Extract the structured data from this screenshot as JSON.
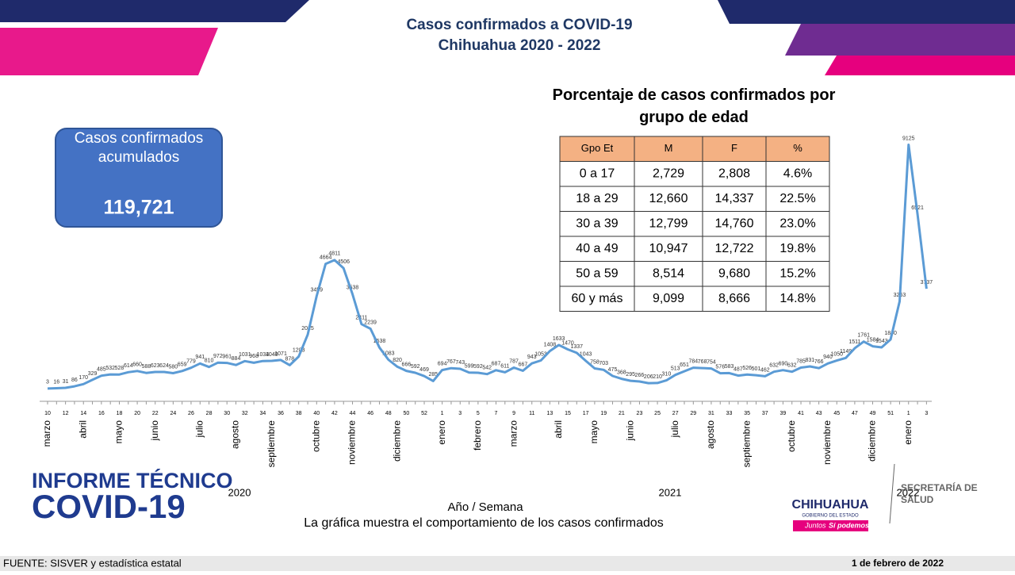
{
  "header": {
    "title": "Casos confirmados a COVID-19",
    "subtitle": "Chihuahua 2020 - 2022"
  },
  "summary": {
    "label": "Casos confirmados acumulados",
    "value": "119,721"
  },
  "table": {
    "title": "Porcentaje de casos confirmados por grupo de edad",
    "columns": [
      "Gpo Et",
      "M",
      "F",
      "%"
    ],
    "rows": [
      [
        "0 a 17",
        "2,729",
        "2,808",
        "4.6%"
      ],
      [
        "18 a 29",
        "12,660",
        "14,337",
        "22.5%"
      ],
      [
        "30 a 39",
        "12,799",
        "14,760",
        "23.0%"
      ],
      [
        "40 a 49",
        "10,947",
        "12,722",
        "19.8%"
      ],
      [
        "50 a 59",
        "8,514",
        "9,680",
        "15.2%"
      ],
      [
        "60 y más",
        "9,099",
        "8,666",
        "14.8%"
      ]
    ]
  },
  "chart_data": {
    "type": "line",
    "color": "#5b9bd5",
    "ylim": [
      0,
      10000
    ],
    "x_label": "Año / Semana",
    "caption": "La gráfica muestra el comportamiento de los casos confirmados",
    "categories": [
      "10",
      null,
      "12",
      null,
      "14",
      null,
      "16",
      null,
      "18",
      null,
      "20",
      null,
      "22",
      null,
      "24",
      null,
      "26",
      null,
      "28",
      null,
      "30",
      null,
      "32",
      null,
      "34",
      null,
      "36",
      null,
      "38",
      null,
      "40",
      null,
      "42",
      null,
      "44",
      null,
      "46",
      null,
      "48",
      null,
      "50",
      null,
      "52",
      null,
      "1",
      null,
      "3",
      null,
      "5",
      null,
      "7",
      null,
      "9",
      null,
      "11",
      null,
      "13",
      null,
      "15",
      null,
      "17",
      null,
      "19",
      null,
      "21",
      null,
      "23",
      null,
      "25",
      null,
      "27",
      null,
      "29",
      null,
      "31",
      null,
      "33",
      null,
      "35",
      null,
      "37",
      null,
      "39",
      null,
      "41",
      null,
      "43",
      null,
      "45",
      null,
      "47",
      null,
      "49",
      null,
      "51",
      null,
      "1",
      null,
      "3"
    ],
    "values": [
      3,
      16,
      31,
      86,
      170,
      329,
      485,
      532,
      528,
      614,
      660,
      588,
      623,
      624,
      580,
      659,
      779,
      941,
      810,
      972,
      961,
      884,
      1031,
      968,
      1034,
      1040,
      1071,
      878,
      1203,
      2015,
      3459,
      4664,
      4811,
      4506,
      3538,
      2411,
      2239,
      1538,
      1083,
      820,
      666,
      592,
      469,
      285,
      694,
      767,
      743,
      599,
      592,
      542,
      687,
      611,
      787,
      667,
      943,
      1053,
      1408,
      1633,
      1470,
      1337,
      1043,
      758,
      703,
      475,
      368,
      295,
      266,
      206,
      210,
      310,
      513,
      651,
      784,
      768,
      754,
      576,
      583,
      487,
      526,
      501,
      462,
      632,
      690,
      632,
      785,
      831,
      766,
      940,
      1050,
      1149,
      1511,
      1761,
      1584,
      1543,
      1840,
      3263,
      9125,
      6521,
      3737
    ],
    "months": [
      "marzo",
      "abril",
      "mayo",
      "junio",
      "julio",
      "agosto",
      "septiembre",
      "octubre",
      "noviembre",
      "diciembre",
      "enero",
      "febrero",
      "marzo",
      "abril",
      "mayo",
      "junio",
      "julio",
      "agosto",
      "septiembre",
      "octubre",
      "noviembre",
      "diciembre",
      "enero"
    ],
    "years": [
      "2020",
      "2021",
      "2022"
    ]
  },
  "branding": {
    "report_line1": "INFORME TÉCNICO",
    "report_line2": "COVID-19",
    "state": "CHIHUAHUA",
    "state_sub": "GOBIERNO DEL ESTADO",
    "slogan1": "Juntos",
    "slogan2": "Sí podemos",
    "secretaria": "SECRETARÍA DE SALUD"
  },
  "footer": {
    "source": "FUENTE: SISVER y estadística estatal",
    "date": "1 de febrero de 2022"
  }
}
